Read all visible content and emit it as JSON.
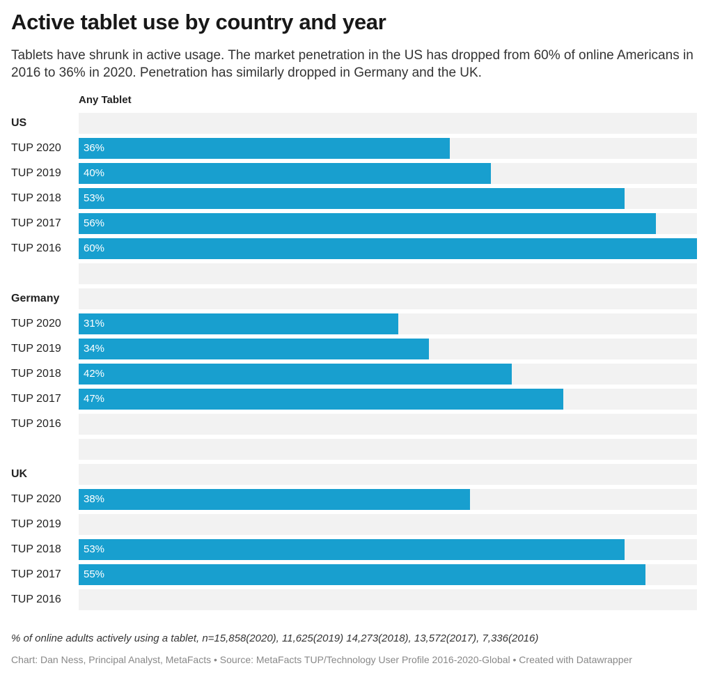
{
  "title": "Active tablet use by country and year",
  "subtitle": "Tablets have shrunk in active usage. The market penetration in the US has dropped from 60% of online Americans in 2016 to 36% in 2020. Penetration has similarly dropped in Germany and the UK.",
  "footnote": "% of online adults actively using a tablet, n=15,858(2020), 11,625(2019) 14,273(2018), 13,572(2017), 7,336(2016)",
  "credits": "Chart: Dan Ness, Principal Analyst, MetaFacts • Source: MetaFacts TUP/Technology User Profile 2016-2020-Global • Created with Datawrapper",
  "colors": {
    "bar": "#189fcf",
    "track": "#f2f2f2"
  },
  "chart_data": {
    "type": "bar",
    "orientation": "horizontal",
    "column_header": "Any Tablet",
    "xlim": [
      0,
      60
    ],
    "unit": "%",
    "groups": [
      {
        "name": "US",
        "rows": [
          {
            "label": "TUP 2020",
            "value": 36,
            "value_label": "36%"
          },
          {
            "label": "TUP 2019",
            "value": 40,
            "value_label": "40%"
          },
          {
            "label": "TUP 2018",
            "value": 53,
            "value_label": "53%"
          },
          {
            "label": "TUP 2017",
            "value": 56,
            "value_label": "56%"
          },
          {
            "label": "TUP 2016",
            "value": 60,
            "value_label": "60%"
          }
        ]
      },
      {
        "name": "Germany",
        "rows": [
          {
            "label": "TUP 2020",
            "value": 31,
            "value_label": "31%"
          },
          {
            "label": "TUP 2019",
            "value": 34,
            "value_label": "34%"
          },
          {
            "label": "TUP 2018",
            "value": 42,
            "value_label": "42%"
          },
          {
            "label": "TUP 2017",
            "value": 47,
            "value_label": "47%"
          },
          {
            "label": "TUP 2016",
            "value": null,
            "value_label": ""
          }
        ]
      },
      {
        "name": "UK",
        "rows": [
          {
            "label": "TUP 2020",
            "value": 38,
            "value_label": "38%"
          },
          {
            "label": "TUP 2019",
            "value": null,
            "value_label": ""
          },
          {
            "label": "TUP 2018",
            "value": 53,
            "value_label": "53%"
          },
          {
            "label": "TUP 2017",
            "value": 55,
            "value_label": "55%"
          },
          {
            "label": "TUP 2016",
            "value": null,
            "value_label": ""
          }
        ]
      }
    ]
  }
}
